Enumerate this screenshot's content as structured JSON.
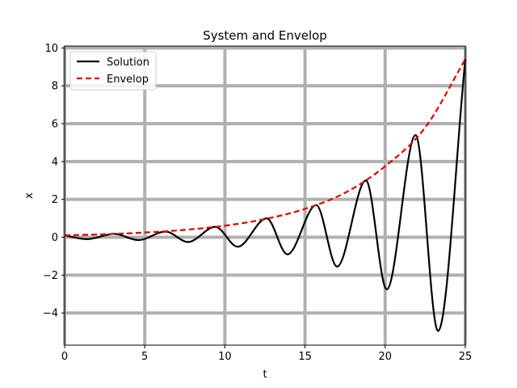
{
  "chart_data": {
    "type": "line",
    "title": "System and Envelop",
    "xlabel": "t",
    "ylabel": "x",
    "xlim": [
      0,
      25
    ],
    "ylim": [
      -5.7,
      10.1
    ],
    "xticks": [
      0,
      5,
      10,
      15,
      20,
      25
    ],
    "yticks": [
      -4,
      -2,
      0,
      2,
      4,
      6,
      8,
      10
    ],
    "xtick_labels": [
      "0",
      "5",
      "10",
      "15",
      "20",
      "25"
    ],
    "ytick_labels": [
      "−4",
      "−2",
      "0",
      "2",
      "4",
      "6",
      "8",
      "10"
    ],
    "grid": true,
    "legend_position": "top-left",
    "series": [
      {
        "name": "Solution",
        "color": "#000000",
        "style": "solid",
        "x": [
          0,
          1.4,
          3.1,
          4.6,
          6.3,
          7.7,
          9.4,
          10.8,
          12.6,
          13.9,
          15.7,
          17.0,
          18.8,
          20.1,
          21.9,
          23.3,
          25
        ],
        "y": [
          0.1,
          -0.1,
          0.18,
          -0.15,
          0.3,
          -0.25,
          0.55,
          -0.5,
          1.0,
          -0.9,
          1.7,
          -1.55,
          3.0,
          -2.75,
          5.4,
          -4.95,
          9.4
        ]
      },
      {
        "name": "Envelop",
        "color": "#e00000",
        "style": "dashed",
        "x": [
          0,
          2.5,
          5,
          7.5,
          10,
          12.5,
          15,
          17.5,
          20,
          22.5,
          25
        ],
        "y": [
          0.1,
          0.16,
          0.25,
          0.39,
          0.61,
          0.96,
          1.5,
          2.35,
          3.75,
          5.8,
          9.4
        ]
      }
    ]
  }
}
